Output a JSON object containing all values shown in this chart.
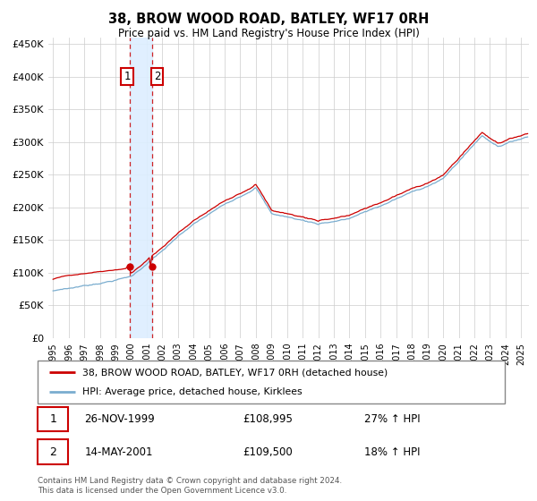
{
  "title": "38, BROW WOOD ROAD, BATLEY, WF17 0RH",
  "subtitle": "Price paid vs. HM Land Registry's House Price Index (HPI)",
  "legend_line1": "38, BROW WOOD ROAD, BATLEY, WF17 0RH (detached house)",
  "legend_line2": "HPI: Average price, detached house, Kirklees",
  "red_color": "#cc0000",
  "blue_color": "#7aadcf",
  "shade_color": "#ddeeff",
  "grid_color": "#cccccc",
  "background_color": "#ffffff",
  "sale1_date": "26-NOV-1999",
  "sale1_price": 108995,
  "sale1_price_str": "£108,995",
  "sale1_hpi": "27% ↑ HPI",
  "sale2_date": "14-MAY-2001",
  "sale2_price": 109500,
  "sale2_price_str": "£109,500",
  "sale2_hpi": "18% ↑ HPI",
  "footer": "Contains HM Land Registry data © Crown copyright and database right 2024.\nThis data is licensed under the Open Government Licence v3.0.",
  "ylim": [
    0,
    460000
  ],
  "yticks": [
    0,
    50000,
    100000,
    150000,
    200000,
    250000,
    300000,
    350000,
    400000,
    450000
  ],
  "ytick_labels": [
    "£0",
    "£50K",
    "£100K",
    "£150K",
    "£200K",
    "£250K",
    "£300K",
    "£350K",
    "£400K",
    "£450K"
  ],
  "sale1_x": 1999.9,
  "sale2_x": 2001.37,
  "xmin": 1994.7,
  "xmax": 2025.5
}
